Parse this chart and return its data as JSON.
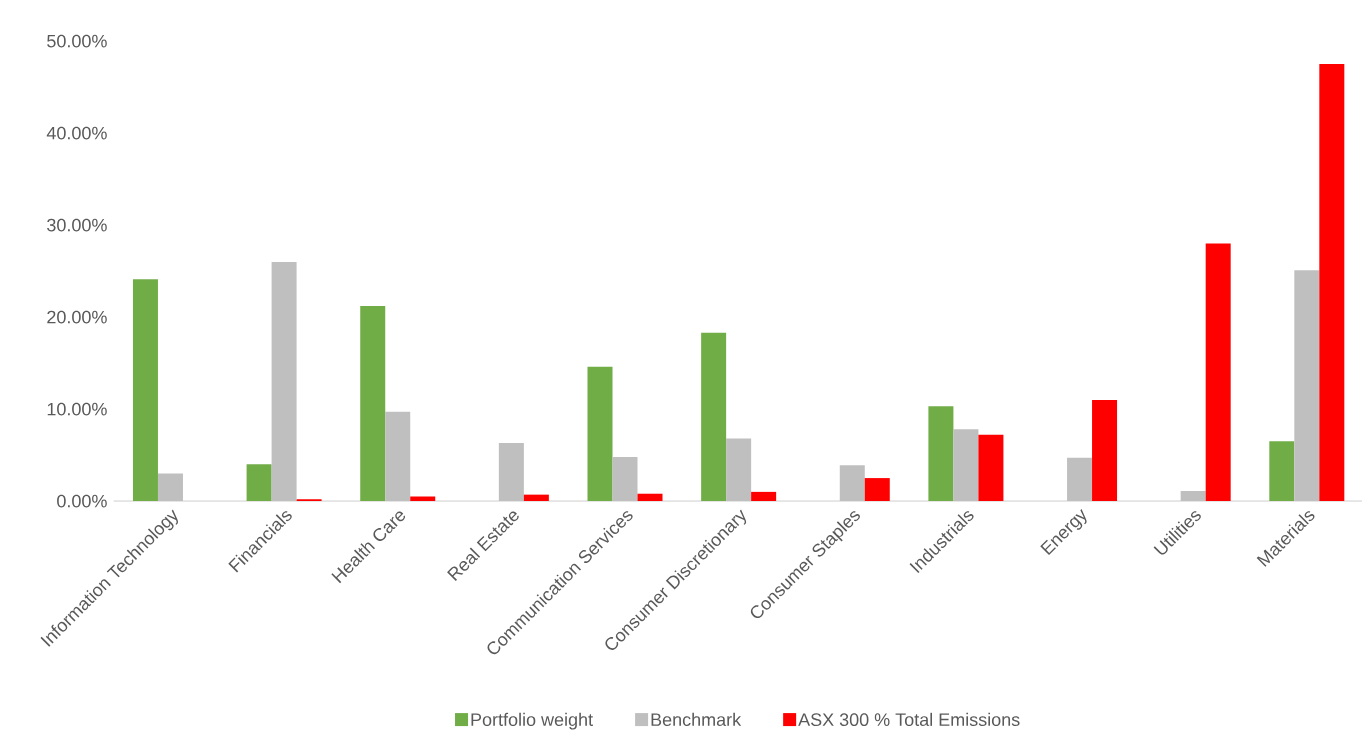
{
  "chart_data": {
    "type": "bar",
    "categories": [
      "Information Technology",
      "Financials",
      "Health Care",
      "Real Estate",
      "Communication Services",
      "Consumer Discretionary",
      "Consumer Staples",
      "Industrials",
      "Energy",
      "Utilities",
      "Materials"
    ],
    "series": [
      {
        "name": "Portfolio weight",
        "color": "#70ad47",
        "values": [
          24.1,
          4.0,
          21.2,
          null,
          14.6,
          18.3,
          null,
          10.3,
          null,
          null,
          6.5
        ]
      },
      {
        "name": "Benchmark",
        "color": "#bfbfbf",
        "values": [
          3.0,
          26.0,
          9.7,
          6.3,
          4.8,
          6.8,
          3.9,
          7.8,
          4.7,
          1.1,
          25.1
        ]
      },
      {
        "name": "ASX 300 % Total Emissions",
        "color": "#ff0000",
        "values": [
          null,
          0.2,
          0.5,
          0.7,
          0.8,
          1.0,
          2.5,
          7.2,
          11.0,
          28.0,
          47.5
        ]
      }
    ],
    "ylim": [
      0,
      50
    ],
    "yticks": [
      {
        "value": 0,
        "label": "0.00%"
      },
      {
        "value": 10,
        "label": "10.00%"
      },
      {
        "value": 20,
        "label": "20.00%"
      },
      {
        "value": 30,
        "label": "30.00%"
      },
      {
        "value": 40,
        "label": "40.00%"
      },
      {
        "value": 50,
        "label": "50.00%"
      }
    ],
    "legend": "bottom"
  }
}
